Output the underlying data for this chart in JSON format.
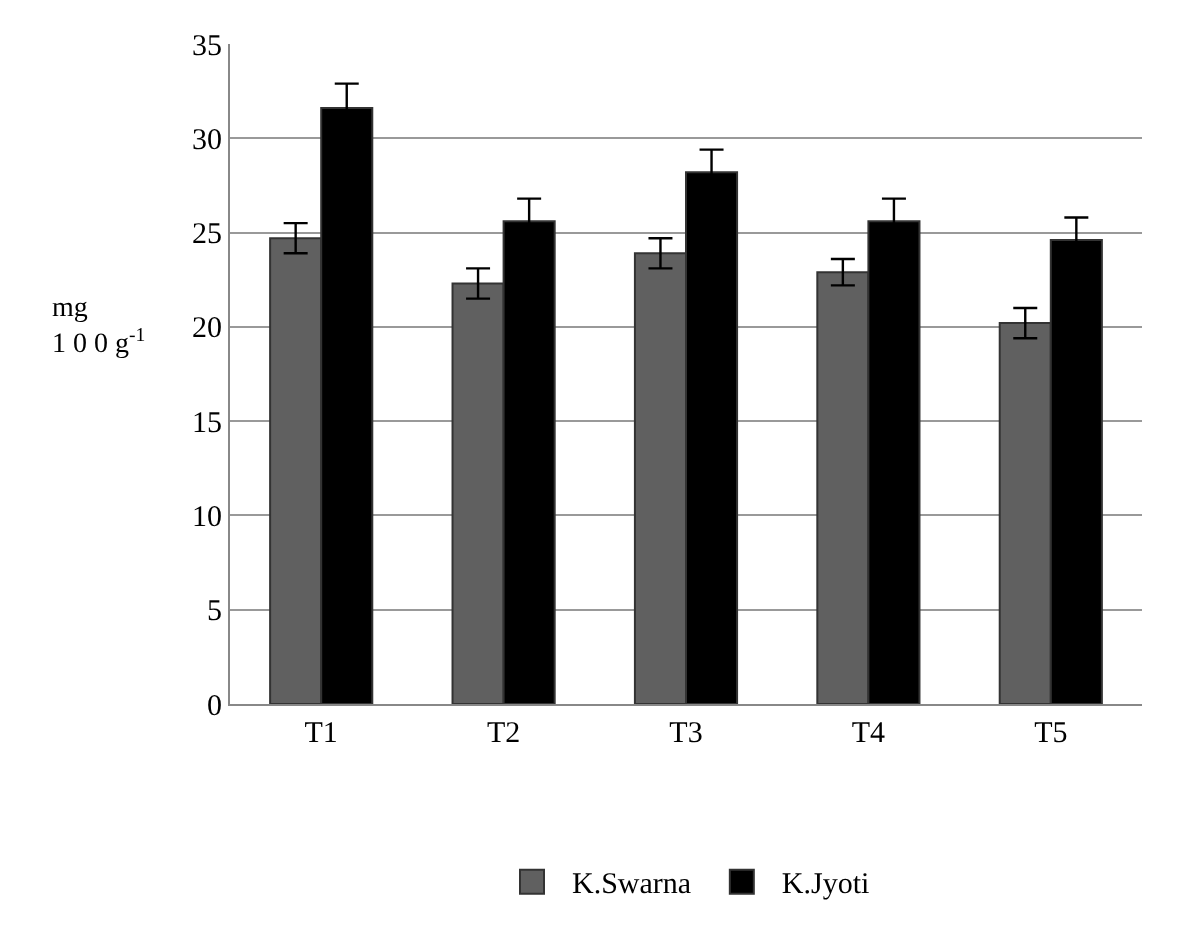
{
  "chart_data": {
    "type": "bar",
    "ylabel": "mg\n1 0 0 g$^{-1}$",
    "categories": [
      "T1",
      "T2",
      "T3",
      "T4",
      "T5"
    ],
    "series": [
      {
        "name": "K.Swarna",
        "color": "#606060",
        "values": [
          24.7,
          22.3,
          23.9,
          22.9,
          20.2
        ],
        "errors": [
          0.8,
          0.8,
          0.8,
          0.7,
          0.8
        ]
      },
      {
        "name": "K.Jyoti",
        "color": "#000000",
        "values": [
          31.6,
          25.6,
          28.2,
          25.6,
          24.6
        ],
        "errors": [
          1.3,
          1.2,
          1.2,
          1.2,
          1.2
        ]
      }
    ],
    "ylim": [
      0,
      35
    ],
    "yticks": [
      0,
      5,
      10,
      15,
      20,
      25,
      30,
      35
    ],
    "grid": "y",
    "legend": "bottom"
  }
}
